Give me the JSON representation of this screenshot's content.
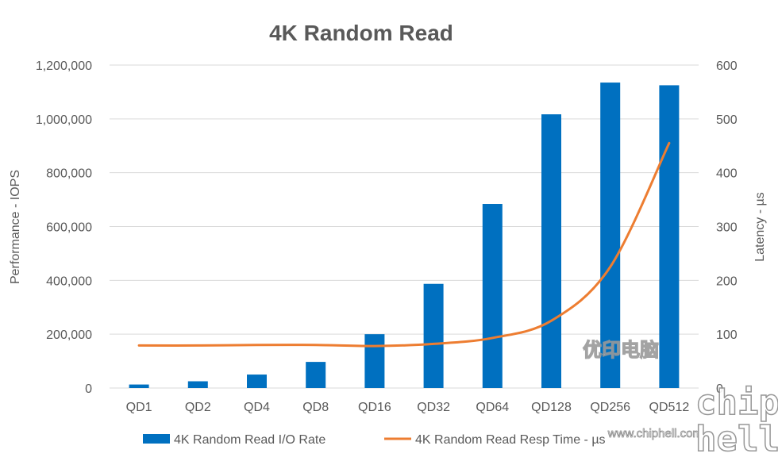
{
  "chart_data": {
    "type": "bar",
    "title": "4K Random Read",
    "categories": [
      "QD1",
      "QD2",
      "QD4",
      "QD8",
      "QD16",
      "QD32",
      "QD64",
      "QD128",
      "QD256",
      "QD512"
    ],
    "series": [
      {
        "name": "4K Random Read I/O Rate",
        "type": "bar",
        "axis": "left",
        "color": "#0070C0",
        "values": [
          13000,
          25000,
          50000,
          97000,
          200000,
          387000,
          684000,
          1017000,
          1135000,
          1125000
        ]
      },
      {
        "name": "4K Random Read Resp Time - µs",
        "type": "line",
        "axis": "right",
        "color": "#ED7D31",
        "values": [
          79,
          79,
          80,
          80,
          78,
          82,
          93,
          125,
          225,
          455
        ]
      }
    ],
    "ylabel": "Performance - IOPS",
    "ylim": [
      0,
      1200000
    ],
    "yticks": [
      "0",
      "200,000",
      "400,000",
      "600,000",
      "800,000",
      "1,000,000",
      "1,200,000"
    ],
    "y2label": "Latency - µs",
    "y2lim": [
      0,
      600
    ],
    "y2ticks": [
      "0",
      "100",
      "200",
      "300",
      "400",
      "500",
      "600"
    ],
    "grid": true,
    "legend": "bottom",
    "gridColor": "#d9d9d9"
  },
  "watermark": {
    "brand_text": "chiphell",
    "cn_text": "优印电脑",
    "url_text": "www.chiphell.com"
  }
}
